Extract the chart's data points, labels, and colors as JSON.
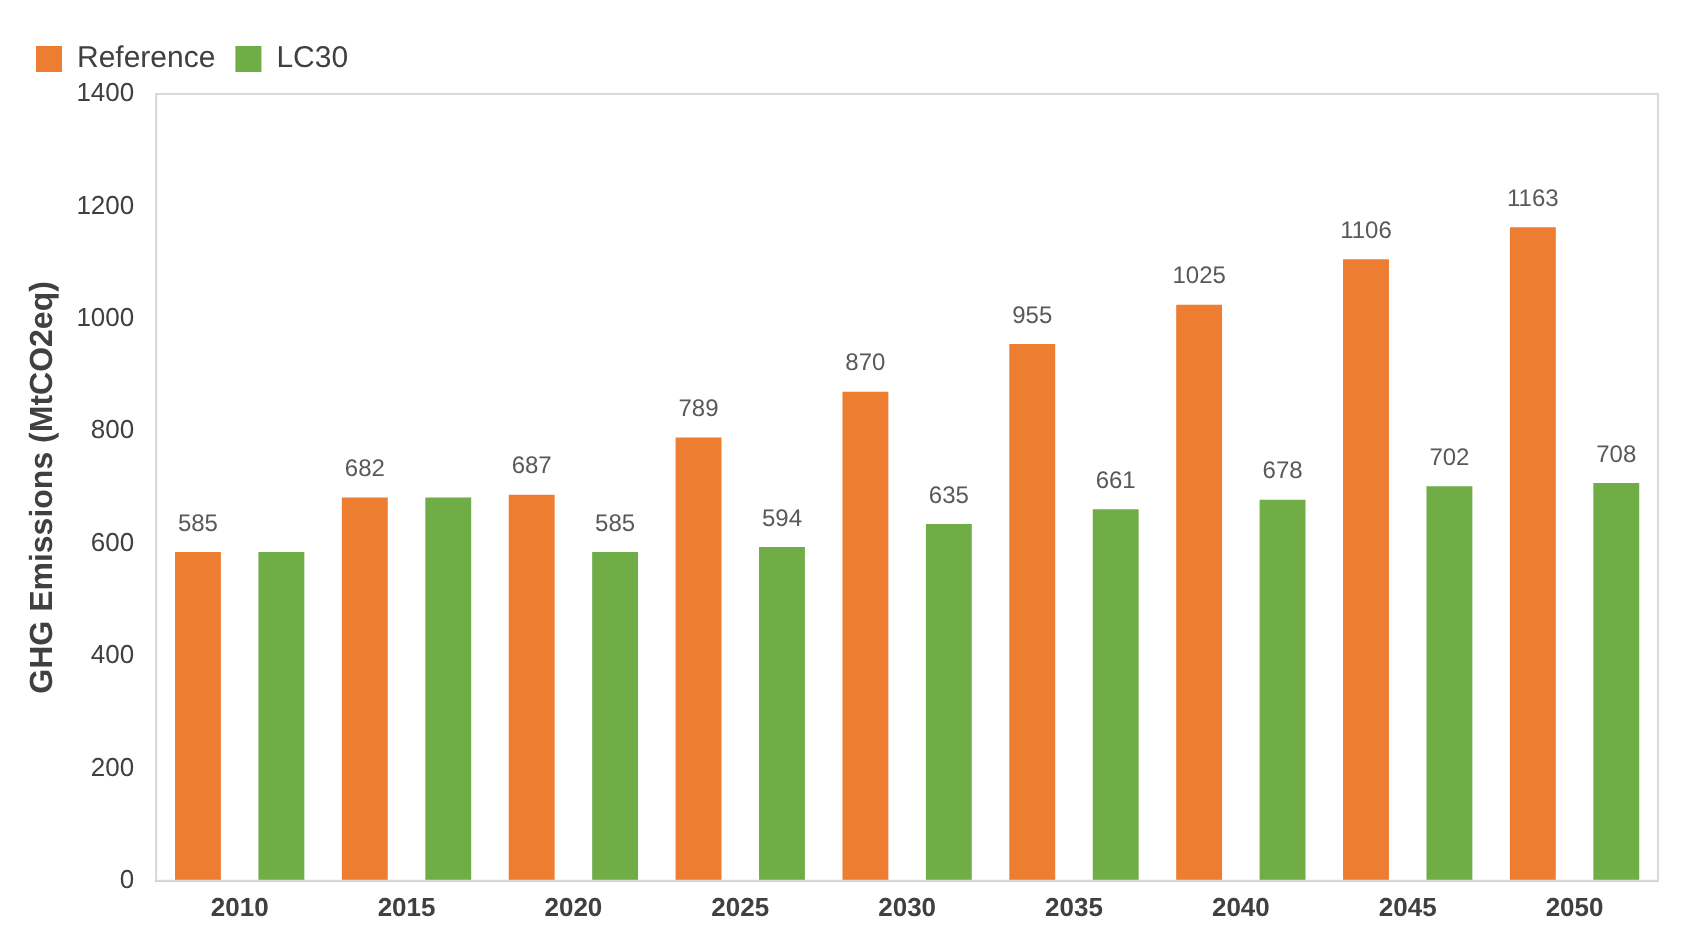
{
  "chart_data": {
    "type": "bar",
    "ylabel": "GHG Emissions (MtCO2eq)",
    "categories": [
      "2010",
      "2015",
      "2020",
      "2025",
      "2030",
      "2035",
      "2040",
      "2045",
      "2050"
    ],
    "series": [
      {
        "name": "Reference",
        "color": "#ed7d31",
        "values": [
          585,
          682,
          687,
          789,
          870,
          955,
          1025,
          1106,
          1163
        ],
        "value_labels": [
          "585",
          "682",
          "687",
          "789",
          "870",
          "955",
          "1025",
          "1106",
          "1163"
        ]
      },
      {
        "name": "LC30",
        "color": "#70ad47",
        "values": [
          585,
          682,
          585,
          594,
          635,
          661,
          678,
          702,
          708
        ],
        "value_labels": [
          null,
          null,
          "585",
          "594",
          "635",
          "661",
          "678",
          "702",
          "708"
        ]
      }
    ],
    "ylim": [
      0,
      1400
    ],
    "yticks": [
      0,
      200,
      400,
      600,
      800,
      1000,
      1200,
      1400
    ],
    "grid": false,
    "legend": "top left"
  }
}
